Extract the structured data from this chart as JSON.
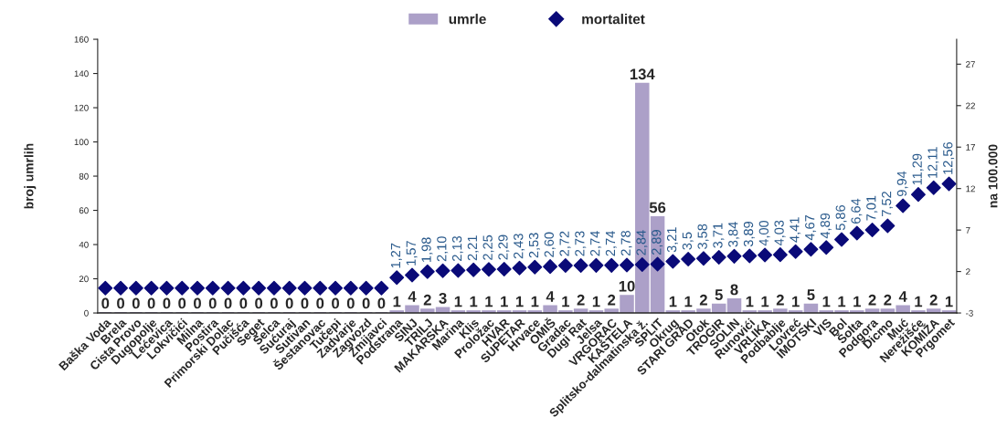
{
  "chart_data": {
    "type": "bar",
    "categories": [
      "Baška Voda",
      "Brela",
      "Cista Provo",
      "Dugopolje",
      "Lećevica",
      "Lokvičići",
      "Milna",
      "Postira",
      "Primorski Dolac",
      "Pučišća",
      "Seget",
      "Selca",
      "Sućuraj",
      "Sutivan",
      "Šestanovac",
      "Tučepi",
      "Zadvarje",
      "Zagvozd",
      "Zmijavci",
      "Podstrana",
      "SINJ",
      "TRILJ",
      "MAKARSKA",
      "Marina",
      "Klis",
      "Proložac",
      "HVAR",
      "SUPETAR",
      "Hrvace",
      "OMIŠ",
      "Gradac",
      "Dugi Rat",
      "Jelsa",
      "VRGORAC",
      "KAŠTELA",
      "Splitsko-dalmatinska ž.",
      "SPLIT",
      "Okrug",
      "STARI GRAD",
      "Otok",
      "TROGIR",
      "SOLIN",
      "Runovići",
      "VRLIKA",
      "Podbablje",
      "Lovreć",
      "IMOTSKI",
      "VIS",
      "Bol",
      "Šolta",
      "Podgora",
      "Dicmo",
      "Muć",
      "Nerežišće",
      "KOMIŽA",
      "Prgomet"
    ],
    "series": [
      {
        "name": "umrle",
        "color": "#aca0c8",
        "values": [
          0,
          0,
          0,
          0,
          0,
          0,
          0,
          0,
          0,
          0,
          0,
          0,
          0,
          0,
          0,
          0,
          0,
          0,
          0,
          1,
          4,
          2,
          3,
          1,
          1,
          1,
          1,
          1,
          1,
          4,
          1,
          2,
          1,
          2,
          10,
          134,
          56,
          1,
          1,
          2,
          5,
          8,
          1,
          1,
          2,
          1,
          5,
          1,
          1,
          1,
          2,
          2,
          4,
          1,
          2,
          1
        ],
        "value_labels": [
          "0",
          "0",
          "0",
          "0",
          "0",
          "0",
          "0",
          "0",
          "0",
          "0",
          "0",
          "0",
          "0",
          "0",
          "0",
          "0",
          "0",
          "0",
          "0",
          "1",
          "4",
          "2",
          "3",
          "1",
          "1",
          "1",
          "1",
          "1",
          "1",
          "4",
          "1",
          "2",
          "1",
          "2",
          "10",
          "134",
          "56",
          "1",
          "1",
          "2",
          "5",
          "8",
          "1",
          "1",
          "2",
          "1",
          "5",
          "1",
          "1",
          "1",
          "2",
          "2",
          "4",
          "1",
          "2",
          "1"
        ]
      },
      {
        "name": "mortalitet",
        "type": "scatter",
        "axis": "y2",
        "color": "#0a0a78",
        "marker": "diamond",
        "values": [
          0,
          0,
          0,
          0,
          0,
          0,
          0,
          0,
          0,
          0,
          0,
          0,
          0,
          0,
          0,
          0,
          0,
          0,
          0,
          1.27,
          1.57,
          1.98,
          2.1,
          2.13,
          2.21,
          2.25,
          2.29,
          2.43,
          2.53,
          2.6,
          2.72,
          2.73,
          2.74,
          2.74,
          2.78,
          2.84,
          2.89,
          3.21,
          3.5,
          3.58,
          3.71,
          3.84,
          3.89,
          4.0,
          4.03,
          4.41,
          4.67,
          4.89,
          5.86,
          6.64,
          7.01,
          7.52,
          9.94,
          11.29,
          12.11,
          12.56
        ],
        "value_labels": [
          null,
          null,
          null,
          null,
          null,
          null,
          null,
          null,
          null,
          null,
          null,
          null,
          null,
          null,
          null,
          null,
          null,
          null,
          null,
          "1,27",
          "1,57",
          "1,98",
          "2,10",
          "2,13",
          "2,21",
          "2,25",
          "2,29",
          "2,43",
          "2,53",
          "2,60",
          "2,72",
          "2,73",
          "2,74",
          "2,74",
          "2,78",
          "2,84",
          "2,89",
          "3,21",
          "3,5",
          "3,58",
          "3,71",
          "3,84",
          "3,89",
          "4,00",
          "4,03",
          "4,41",
          "4,67",
          "4,89",
          "5,86",
          "6,64",
          "7,01",
          "7,52",
          "9,94",
          "11,29",
          "12,11",
          "12,56"
        ]
      }
    ],
    "ylabel": "broj umrlih",
    "y2label": "na 100.000",
    "ylim": [
      0,
      160
    ],
    "yticks": [
      0,
      20,
      40,
      60,
      80,
      100,
      120,
      140,
      160
    ],
    "y2lim": [
      -3,
      30
    ],
    "y2ticks": [
      -3,
      2,
      7,
      12,
      17,
      22,
      27
    ],
    "grid": false,
    "legend": "top"
  }
}
